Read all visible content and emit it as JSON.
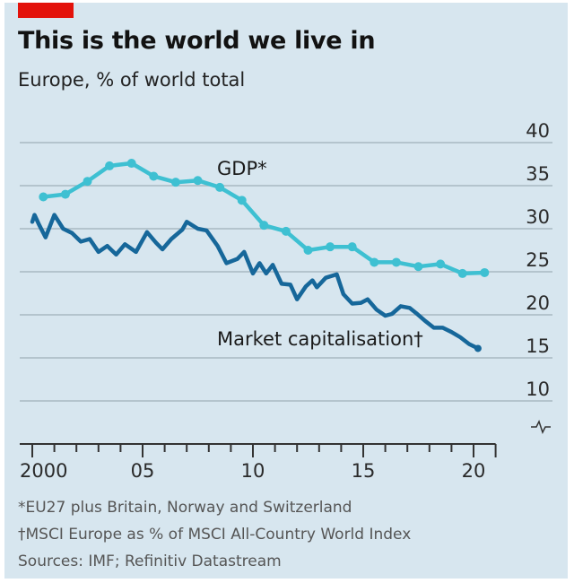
{
  "title": "This is the world we live in",
  "subtitle": "Europe, % of world total",
  "footnotes": [
    "*EU27 plus Britain, Norway and Switzerland",
    "†MSCI Europe as % of MSCI All-Country World Index",
    "Sources: IMF; Refinitiv Datastream"
  ],
  "colors": {
    "gdp": "#3ec0d2",
    "market_cap": "#16679a",
    "background": "#d7e6ef",
    "brand": "#e3120b"
  },
  "chart_data": {
    "type": "line",
    "title": "This is the world we live in",
    "subtitle": "Europe, % of world total",
    "ylim": [
      5,
      40
    ],
    "y_axis_broken": true,
    "y_ticks": [
      10,
      15,
      20,
      25,
      30,
      35,
      40
    ],
    "y_axis_side": "right",
    "grid": true,
    "x_range": [
      2000,
      2021
    ],
    "x_tick_labels": [
      {
        "x": 2000,
        "label": "2000"
      },
      {
        "x": 2005,
        "label": "05"
      },
      {
        "x": 2010,
        "label": "10"
      },
      {
        "x": 2015,
        "label": "15"
      },
      {
        "x": 2020,
        "label": "20"
      }
    ],
    "series": [
      {
        "name": "GDP*",
        "markers": true,
        "x": [
          2000.5,
          2001.5,
          2002.5,
          2003.5,
          2004.5,
          2005.5,
          2006.5,
          2007.5,
          2008.5,
          2009.5,
          2010.5,
          2011.5,
          2012.5,
          2013.5,
          2014.5,
          2015.5,
          2016.5,
          2017.5,
          2018.5,
          2019.5,
          2020.5
        ],
        "y": [
          33.7,
          34.0,
          35.5,
          37.3,
          37.6,
          36.1,
          35.4,
          35.6,
          34.8,
          33.3,
          30.4,
          29.7,
          27.5,
          27.9,
          27.9,
          26.1,
          26.1,
          25.6,
          25.9,
          24.8,
          24.9
        ]
      },
      {
        "name": "Market capitalisation†",
        "markers": false,
        "x": [
          2000.0,
          2000.1,
          2000.3,
          2000.6,
          2001.0,
          2001.4,
          2001.8,
          2002.2,
          2002.6,
          2003.0,
          2003.4,
          2003.8,
          2004.2,
          2004.7,
          2005.2,
          2005.6,
          2005.9,
          2006.3,
          2006.8,
          2007.0,
          2007.5,
          2007.9,
          2008.4,
          2008.8,
          2009.3,
          2009.6,
          2010.0,
          2010.3,
          2010.6,
          2010.9,
          2011.3,
          2011.7,
          2012.0,
          2012.4,
          2012.7,
          2012.9,
          2013.3,
          2013.8,
          2014.1,
          2014.5,
          2014.9,
          2015.2,
          2015.6,
          2016.0,
          2016.3,
          2016.7,
          2017.1,
          2017.4,
          2017.8,
          2018.2,
          2018.6,
          2019.0,
          2019.4,
          2019.8,
          2020.2
        ],
        "y": [
          30.8,
          31.6,
          30.5,
          29.0,
          31.6,
          30.0,
          29.5,
          28.5,
          28.8,
          27.3,
          28.0,
          27.0,
          28.2,
          27.3,
          29.6,
          28.4,
          27.6,
          28.8,
          29.9,
          30.8,
          30.0,
          29.8,
          28.0,
          26.0,
          26.5,
          27.3,
          24.8,
          26.0,
          24.8,
          25.8,
          23.6,
          23.5,
          21.8,
          23.3,
          24.0,
          23.2,
          24.3,
          24.7,
          22.4,
          21.3,
          21.4,
          21.8,
          20.6,
          19.9,
          20.1,
          21.0,
          20.8,
          20.2,
          19.3,
          18.5,
          18.5,
          18.0,
          17.4,
          16.6,
          16.1
        ]
      }
    ]
  }
}
